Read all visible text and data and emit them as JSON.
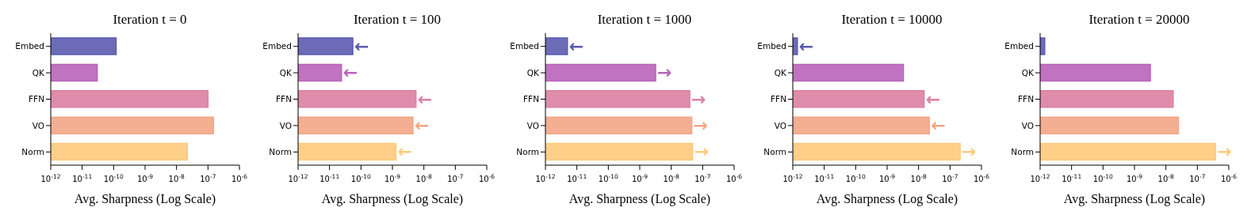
{
  "chart_data": [
    {
      "type": "bar",
      "orientation": "horizontal",
      "log": "x",
      "title": "Iteration t = 0",
      "xlabel": "Avg. Sharpness (Log Scale)",
      "categories": [
        "Embed",
        "QK",
        "FFN",
        "VO",
        "Norm"
      ],
      "values": [
        1.2e-10,
        3e-11,
        1e-07,
        1.5e-07,
        2.2e-08
      ],
      "colors": [
        "#5b5bb0",
        "#b964b9",
        "#dc80a2",
        "#f3a586",
        "#fdca7b"
      ],
      "xlim": [
        1e-12,
        1e-06
      ],
      "xticks": [
        {
          "value": 1e-12,
          "label": "10$^{-12}$"
        },
        {
          "value": 1e-11,
          "label": "10$^{-11}$"
        },
        {
          "value": 1e-10,
          "label": "10$^{-10}$"
        },
        {
          "value": 1e-09,
          "label": "10$^{-9}$"
        },
        {
          "value": 1e-08,
          "label": "10$^{-8}$"
        },
        {
          "value": 1e-07,
          "label": "10$^{-7}$"
        },
        {
          "value": 1e-06,
          "label": "10$^{-6}$"
        }
      ],
      "grid": false,
      "legend": false
    },
    {
      "type": "bar",
      "orientation": "horizontal",
      "log": "x",
      "title": "Iteration t = 100",
      "xlabel": "Avg. Sharpness (Log Scale)",
      "categories": [
        "Embed",
        "QK",
        "FFN",
        "VO",
        "Norm"
      ],
      "values": [
        5.5e-11,
        2.4e-11,
        5.6e-09,
        4.5e-09,
        1.3e-09
      ],
      "colors": [
        "#5b5bb0",
        "#b964b9",
        "#dc80a2",
        "#f3a586",
        "#fdca7b"
      ],
      "xlim": [
        1e-12,
        1e-06
      ],
      "xticks": [
        {
          "value": 1e-12,
          "label": "10$^{-12}$"
        },
        {
          "value": 1e-11,
          "label": "10$^{-11}$"
        },
        {
          "value": 1e-10,
          "label": "10$^{-10}$"
        },
        {
          "value": 1e-09,
          "label": "10$^{-9}$"
        },
        {
          "value": 1e-08,
          "label": "10$^{-8}$"
        },
        {
          "value": 1e-07,
          "label": "10$^{-7}$"
        },
        {
          "value": 1e-06,
          "label": "10$^{-6}$"
        }
      ],
      "grid": false,
      "legend": false,
      "annotations": [
        {
          "text": "←",
          "x": 5.5e-11,
          "y": "Embed"
        },
        {
          "text": "←",
          "x": 2.4e-11,
          "y": "QK"
        },
        {
          "text": "←",
          "x": 5.6e-09,
          "y": "FFN"
        },
        {
          "text": "←",
          "x": 4.5e-09,
          "y": "VO"
        },
        {
          "text": "←",
          "x": 1.3e-09,
          "y": "Norm"
        }
      ]
    },
    {
      "type": "bar",
      "orientation": "horizontal",
      "log": "x",
      "title": "Iteration t = 1000",
      "xlabel": "Avg. Sharpness (Log Scale)",
      "categories": [
        "Embed",
        "QK",
        "FFN",
        "VO",
        "Norm"
      ],
      "values": [
        5e-12,
        3.2e-09,
        3.9e-08,
        4.5e-08,
        4.8e-08
      ],
      "colors": [
        "#5b5bb0",
        "#b964b9",
        "#dc80a2",
        "#f3a586",
        "#fdca7b"
      ],
      "xlim": [
        1e-12,
        1e-06
      ],
      "xticks": [
        {
          "value": 1e-12,
          "label": "10$^{-12}$"
        },
        {
          "value": 1e-11,
          "label": "10$^{-11}$"
        },
        {
          "value": 1e-10,
          "label": "10$^{-10}$"
        },
        {
          "value": 1e-09,
          "label": "10$^{-9}$"
        },
        {
          "value": 1e-08,
          "label": "10$^{-8}$"
        },
        {
          "value": 1e-07,
          "label": "10$^{-7}$"
        },
        {
          "value": 1e-06,
          "label": "10$^{-6}$"
        }
      ],
      "grid": false,
      "legend": false,
      "annotations": [
        {
          "text": "←",
          "x": 5e-12,
          "y": "Embed"
        },
        {
          "text": "→",
          "x": 3.2e-09,
          "y": "QK"
        },
        {
          "text": "→",
          "x": 3.9e-08,
          "y": "FFN"
        },
        {
          "text": "→",
          "x": 4.5e-08,
          "y": "VO"
        },
        {
          "text": "→",
          "x": 4.8e-08,
          "y": "Norm"
        }
      ]
    },
    {
      "type": "bar",
      "orientation": "horizontal",
      "log": "x",
      "title": "Iteration t = 10000",
      "xlabel": "Avg. Sharpness (Log Scale)",
      "categories": [
        "Embed",
        "QK",
        "FFN",
        "VO",
        "Norm"
      ],
      "values": [
        1.4e-12,
        3.3e-09,
        1.5e-08,
        2.2e-08,
        2.1e-07
      ],
      "colors": [
        "#5b5bb0",
        "#b964b9",
        "#dc80a2",
        "#f3a586",
        "#fdca7b"
      ],
      "xlim": [
        1e-12,
        1e-06
      ],
      "xticks": [
        {
          "value": 1e-12,
          "label": "10$^{-12}$"
        },
        {
          "value": 1e-11,
          "label": "10$^{-11}$"
        },
        {
          "value": 1e-10,
          "label": "10$^{-10}$"
        },
        {
          "value": 1e-09,
          "label": "10$^{-9}$"
        },
        {
          "value": 1e-08,
          "label": "10$^{-8}$"
        },
        {
          "value": 1e-07,
          "label": "10$^{-7}$"
        },
        {
          "value": 1e-06,
          "label": "10$^{-6}$"
        }
      ],
      "grid": false,
      "legend": false,
      "annotations": [
        {
          "text": "←",
          "x": 1.4e-12,
          "y": "Embed"
        },
        {
          "text": "←",
          "x": 1.5e-08,
          "y": "FFN"
        },
        {
          "text": "←",
          "x": 2.2e-08,
          "y": "VO"
        },
        {
          "text": "→",
          "x": 2.1e-07,
          "y": "Norm"
        }
      ]
    },
    {
      "type": "bar",
      "orientation": "horizontal",
      "log": "x",
      "title": "Iteration t = 20000",
      "xlabel": "Avg. Sharpness (Log Scale)",
      "categories": [
        "Embed",
        "QK",
        "FFN",
        "VO",
        "Norm"
      ],
      "values": [
        1.4e-12,
        3.2e-09,
        1.7e-08,
        2.5e-08,
        3.8e-07
      ],
      "colors": [
        "#5b5bb0",
        "#b964b9",
        "#dc80a2",
        "#f3a586",
        "#fdca7b"
      ],
      "xlim": [
        1e-12,
        1e-06
      ],
      "xticks": [
        {
          "value": 1e-12,
          "label": "10$^{-12}$"
        },
        {
          "value": 1e-11,
          "label": "10$^{-11}$"
        },
        {
          "value": 1e-10,
          "label": "10$^{-10}$"
        },
        {
          "value": 1e-09,
          "label": "10$^{-9}$"
        },
        {
          "value": 1e-08,
          "label": "10$^{-8}$"
        },
        {
          "value": 1e-07,
          "label": "10$^{-7}$"
        },
        {
          "value": 1e-06,
          "label": "10$^{-6}$"
        }
      ],
      "grid": false,
      "legend": false,
      "annotations": [
        {
          "text": "→",
          "x": 3.8e-07,
          "y": "Norm"
        }
      ]
    }
  ]
}
